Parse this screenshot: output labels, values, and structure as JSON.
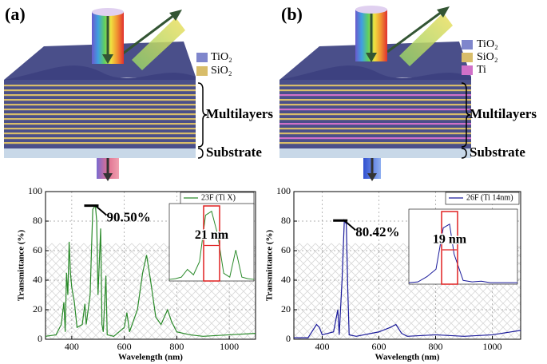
{
  "panels": [
    {
      "label": "(a)",
      "legend": [
        "TiO₂",
        "SiO₂"
      ],
      "multilayers": "Multilayers",
      "substrate": "Substrate"
    },
    {
      "label": "(b)",
      "legend": [
        "TiO₂",
        "SiO₂",
        "Ti"
      ],
      "multilayers": "Multilayers",
      "substrate": "Substrate"
    }
  ],
  "chart_data": [
    {
      "type": "line",
      "x_label": "Wavelength (nm)",
      "y_label": "Transmittance (%)",
      "xlim": [
        300,
        1100
      ],
      "ylim": [
        0,
        100
      ],
      "xticks": [
        400,
        600,
        800,
        1000
      ],
      "yticks": [
        0,
        20,
        40,
        60,
        80,
        100
      ],
      "grid": true,
      "x": [
        300,
        340,
        360,
        370,
        375,
        380,
        385,
        390,
        395,
        400,
        410,
        420,
        440,
        450,
        455,
        470,
        475,
        480,
        490,
        495,
        500,
        510,
        515,
        520,
        530,
        535,
        560,
        600,
        610,
        620,
        650,
        670,
        685,
        700,
        720,
        740,
        765,
        780,
        800,
        850,
        900,
        1000,
        1100
      ],
      "series": [
        {
          "name": "23F (Ti X)",
          "color": "#2a8a2a",
          "values": [
            2,
            3,
            10,
            25,
            5,
            45,
            30,
            66,
            45,
            35,
            25,
            8,
            10,
            24,
            10,
            30,
            60,
            88,
            90.5,
            80,
            30,
            75,
            10,
            5,
            43,
            3,
            2,
            8,
            18,
            5,
            20,
            45,
            57,
            40,
            15,
            10,
            20,
            12,
            5,
            3,
            2,
            3,
            4
          ]
        }
      ],
      "annotation": {
        "text": "90.50%",
        "x": 490,
        "y": 90.5
      },
      "inset": {
        "label": "21 nm",
        "xlim": [
          420,
          560
        ],
        "ylim": [
          0,
          100
        ],
        "x": [
          420,
          430,
          440,
          450,
          460,
          470,
          480,
          490,
          500,
          510,
          520,
          530,
          540,
          550,
          560
        ],
        "values": [
          2,
          3,
          5,
          15,
          8,
          25,
          85,
          90,
          60,
          10,
          5,
          40,
          5,
          3,
          2
        ]
      }
    },
    {
      "type": "line",
      "x_label": "Wavelength (nm)",
      "y_label": "Transmittance (%)",
      "xlim": [
        300,
        1100
      ],
      "ylim": [
        0,
        100
      ],
      "xticks": [
        400,
        600,
        800,
        1000
      ],
      "yticks": [
        0,
        20,
        40,
        60,
        80,
        100
      ],
      "grid": true,
      "x": [
        300,
        350,
        380,
        390,
        400,
        420,
        440,
        455,
        460,
        470,
        478,
        485,
        490,
        495,
        520,
        600,
        640,
        660,
        680,
        700,
        800,
        900,
        1000,
        1100
      ],
      "series": [
        {
          "name": "26F (Ti 14nm)",
          "color": "#1a1a9a",
          "values": [
            1,
            1,
            10,
            8,
            3,
            4,
            5,
            20,
            3,
            40,
            80.42,
            78,
            35,
            3,
            2,
            5,
            8,
            10,
            4,
            2,
            3,
            2,
            3,
            6
          ]
        }
      ],
      "annotation": {
        "text": "80.42%",
        "x": 478,
        "y": 80.42
      },
      "inset": {
        "label": "19 nm",
        "xlim": [
          440,
          560
        ],
        "ylim": [
          0,
          100
        ],
        "x": [
          440,
          450,
          460,
          470,
          478,
          485,
          490,
          500,
          510,
          520,
          530,
          540,
          560
        ],
        "values": [
          2,
          3,
          10,
          20,
          75,
          80,
          40,
          5,
          3,
          4,
          2,
          2,
          2
        ]
      }
    }
  ]
}
